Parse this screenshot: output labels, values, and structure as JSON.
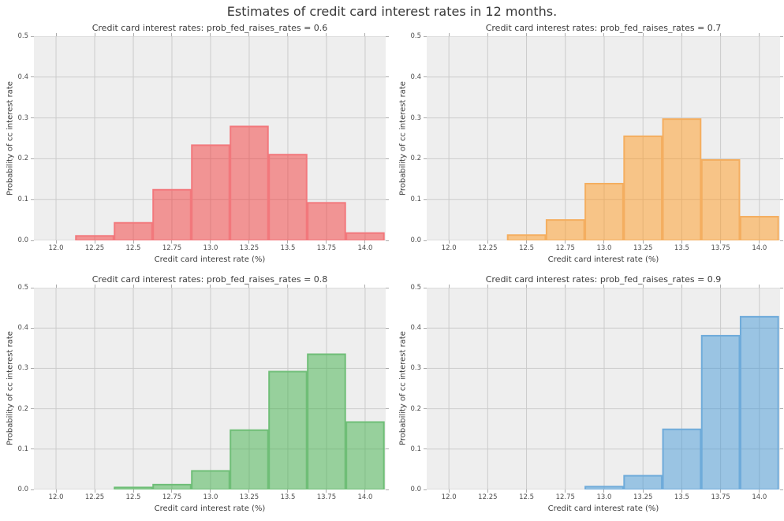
{
  "figure": {
    "title": "Estimates of credit card interest rates in 12 months.",
    "background": "#ffffff",
    "plot_background": "#eeeeee",
    "grid_color": "#cbcbcb",
    "tick_mark_color": "#ababab",
    "text_color": "#3d3d3d"
  },
  "chart_data": [
    {
      "type": "bar",
      "title": "Credit card interest rates: prob_fed_raises_rates = 0.6",
      "xlabel": "Credit card interest rate (%)",
      "ylabel": "Probability of cc interest rate",
      "xlim": [
        11.857,
        14.133
      ],
      "ylim": [
        0,
        0.5
      ],
      "grid": true,
      "xticks": [
        12.0,
        12.25,
        12.5,
        12.75,
        13.0,
        13.25,
        13.5,
        13.75,
        14.0
      ],
      "xtick_labels": [
        "12.0",
        "12.25",
        "12.5",
        "12.75",
        "13.0",
        "13.25",
        "13.5",
        "13.75",
        "14.0"
      ],
      "yticks": [
        0,
        0.1,
        0.2,
        0.3,
        0.4,
        0.5
      ],
      "ytick_labels": [
        "0.0",
        "0.1",
        "0.2",
        "0.3",
        "0.4",
        "0.5"
      ],
      "bin_start": 12.125,
      "bin_width": 0.25,
      "values": [
        0.011,
        0.043,
        0.124,
        0.233,
        0.279,
        0.21,
        0.092,
        0.018
      ],
      "fill_color": "rgba(243,57,58,0.5)",
      "edge_color": "#f2787c"
    },
    {
      "type": "bar",
      "title": "Credit card interest rates: prob_fed_raises_rates = 0.7",
      "xlabel": "Credit card interest rate (%)",
      "ylabel": "Probability of cc interest rate",
      "xlim": [
        11.857,
        14.133
      ],
      "ylim": [
        0,
        0.5
      ],
      "grid": true,
      "xticks": [
        12.0,
        12.25,
        12.5,
        12.75,
        13.0,
        13.25,
        13.5,
        13.75,
        14.0
      ],
      "xtick_labels": [
        "12.0",
        "12.25",
        "12.5",
        "12.75",
        "13.0",
        "13.25",
        "13.5",
        "13.75",
        "14.0"
      ],
      "yticks": [
        0,
        0.1,
        0.2,
        0.3,
        0.4,
        0.5
      ],
      "ytick_labels": [
        "0.0",
        "0.1",
        "0.2",
        "0.3",
        "0.4",
        "0.5"
      ],
      "bin_start": 12.375,
      "bin_width": 0.25,
      "values": [
        0.013,
        0.05,
        0.139,
        0.255,
        0.297,
        0.197,
        0.058
      ],
      "fill_color": "rgba(255,154,32,0.5)",
      "edge_color": "#f4ae60"
    },
    {
      "type": "bar",
      "title": "Credit card interest rates: prob_fed_raises_rates = 0.8",
      "xlabel": "Credit card interest rate (%)",
      "ylabel": "Probability of cc interest rate",
      "xlim": [
        11.857,
        14.133
      ],
      "ylim": [
        0,
        0.5
      ],
      "grid": true,
      "xticks": [
        12.0,
        12.25,
        12.5,
        12.75,
        13.0,
        13.25,
        13.5,
        13.75,
        14.0
      ],
      "xtick_labels": [
        "12.0",
        "12.25",
        "12.5",
        "12.75",
        "13.0",
        "13.25",
        "13.5",
        "13.75",
        "14.0"
      ],
      "yticks": [
        0,
        0.1,
        0.2,
        0.3,
        0.4,
        0.5
      ],
      "ytick_labels": [
        "0.0",
        "0.1",
        "0.2",
        "0.3",
        "0.4",
        "0.5"
      ],
      "bin_start": 12.375,
      "bin_width": 0.25,
      "values": [
        0.005,
        0.012,
        0.046,
        0.147,
        0.292,
        0.335,
        0.167
      ],
      "fill_color": "rgba(64,178,74,0.5)",
      "edge_color": "#6fbe77"
    },
    {
      "type": "bar",
      "title": "Credit card interest rates: prob_fed_raises_rates = 0.9",
      "xlabel": "Credit card interest rate (%)",
      "ylabel": "Probability of cc interest rate",
      "xlim": [
        11.857,
        14.133
      ],
      "ylim": [
        0,
        0.5
      ],
      "grid": true,
      "xticks": [
        12.0,
        12.25,
        12.5,
        12.75,
        13.0,
        13.25,
        13.5,
        13.75,
        14.0
      ],
      "xtick_labels": [
        "12.0",
        "12.25",
        "12.5",
        "12.75",
        "13.0",
        "13.25",
        "13.5",
        "13.75",
        "14.0"
      ],
      "yticks": [
        0,
        0.1,
        0.2,
        0.3,
        0.4,
        0.5
      ],
      "ytick_labels": [
        "0.0",
        "0.1",
        "0.2",
        "0.3",
        "0.4",
        "0.5"
      ],
      "bin_start": 12.875,
      "bin_width": 0.25,
      "values": [
        0.007,
        0.034,
        0.149,
        0.381,
        0.428
      ],
      "fill_color": "rgba(70,154,216,0.5)",
      "edge_color": "#6fabda"
    }
  ]
}
